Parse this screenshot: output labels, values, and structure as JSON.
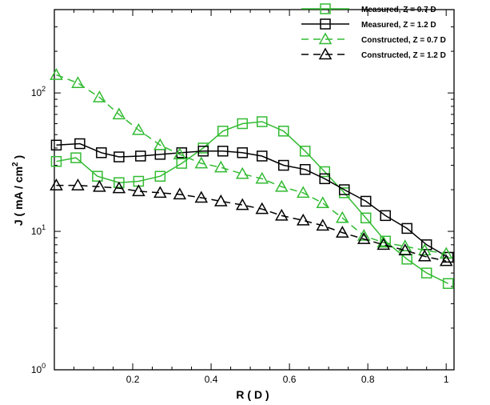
{
  "chart_data": {
    "type": "line",
    "xlabel": "R ( D )",
    "ylabel_parts": [
      "J ( mA / cm",
      "2",
      " )"
    ],
    "xlim": [
      0,
      1.02
    ],
    "ylim": [
      1,
      400
    ],
    "yscale": "log",
    "grid": false,
    "legend_position": "top-right",
    "xticks": [
      0.2,
      0.4,
      0.6,
      0.8,
      1
    ],
    "xtick_labels": [
      "0.2",
      "0.4",
      "0.6",
      "0.8",
      "1"
    ],
    "yticks": [
      1,
      10,
      100
    ],
    "ytick_base": "10",
    "ytick_exponents": [
      "0",
      "1",
      "2"
    ],
    "series": [
      {
        "name": "Measured, Z = 0.7 D",
        "color": "#33bb33",
        "marker": "square",
        "dash": false,
        "x": [
          0.005,
          0.055,
          0.11,
          0.165,
          0.215,
          0.27,
          0.325,
          0.38,
          0.43,
          0.48,
          0.53,
          0.585,
          0.64,
          0.69,
          0.74,
          0.795,
          0.845,
          0.9,
          0.95,
          1.005
        ],
        "y": [
          32,
          34,
          25,
          22.5,
          23,
          25,
          31,
          40,
          53,
          60,
          62,
          53,
          38,
          27,
          19,
          12.5,
          8.5,
          6.3,
          5.0,
          4.2
        ]
      },
      {
        "name": "Measured, Z = 1.2 D",
        "color": "#000000",
        "marker": "square",
        "dash": false,
        "x": [
          0.005,
          0.065,
          0.12,
          0.165,
          0.22,
          0.27,
          0.325,
          0.38,
          0.43,
          0.48,
          0.53,
          0.585,
          0.64,
          0.69,
          0.74,
          0.795,
          0.845,
          0.9,
          0.95,
          1.005
        ],
        "y": [
          42,
          43,
          37,
          34.5,
          35,
          36,
          37,
          38,
          38,
          37,
          35,
          30,
          28,
          24,
          20,
          16.5,
          13,
          10.5,
          8.0,
          6.5
        ]
      },
      {
        "name": "Constructed, Z = 0.7 D",
        "color": "#33bb33",
        "marker": "triangle",
        "dash": true,
        "x": [
          0.005,
          0.06,
          0.115,
          0.165,
          0.215,
          0.27,
          0.32,
          0.375,
          0.425,
          0.48,
          0.53,
          0.58,
          0.635,
          0.685,
          0.735,
          0.79,
          0.84,
          0.895,
          0.945,
          1.0
        ],
        "y": [
          135,
          118,
          93,
          70,
          54,
          42,
          36,
          31,
          29,
          26,
          24,
          21,
          19,
          16,
          12.5,
          9.3,
          8.3,
          7.8,
          7.3,
          6.9
        ]
      },
      {
        "name": "Constructed, Z = 1.2 D",
        "color": "#000000",
        "marker": "triangle",
        "dash": true,
        "x": [
          0.005,
          0.06,
          0.115,
          0.165,
          0.215,
          0.27,
          0.32,
          0.375,
          0.425,
          0.48,
          0.53,
          0.58,
          0.635,
          0.685,
          0.735,
          0.79,
          0.84,
          0.895,
          0.945,
          1.0
        ],
        "y": [
          21.5,
          21.5,
          21,
          20.5,
          19.5,
          19,
          18.5,
          17.5,
          16.5,
          15.5,
          14.5,
          13,
          12,
          11,
          9.8,
          8.8,
          8.0,
          7.3,
          6.6,
          6.1
        ]
      }
    ]
  }
}
